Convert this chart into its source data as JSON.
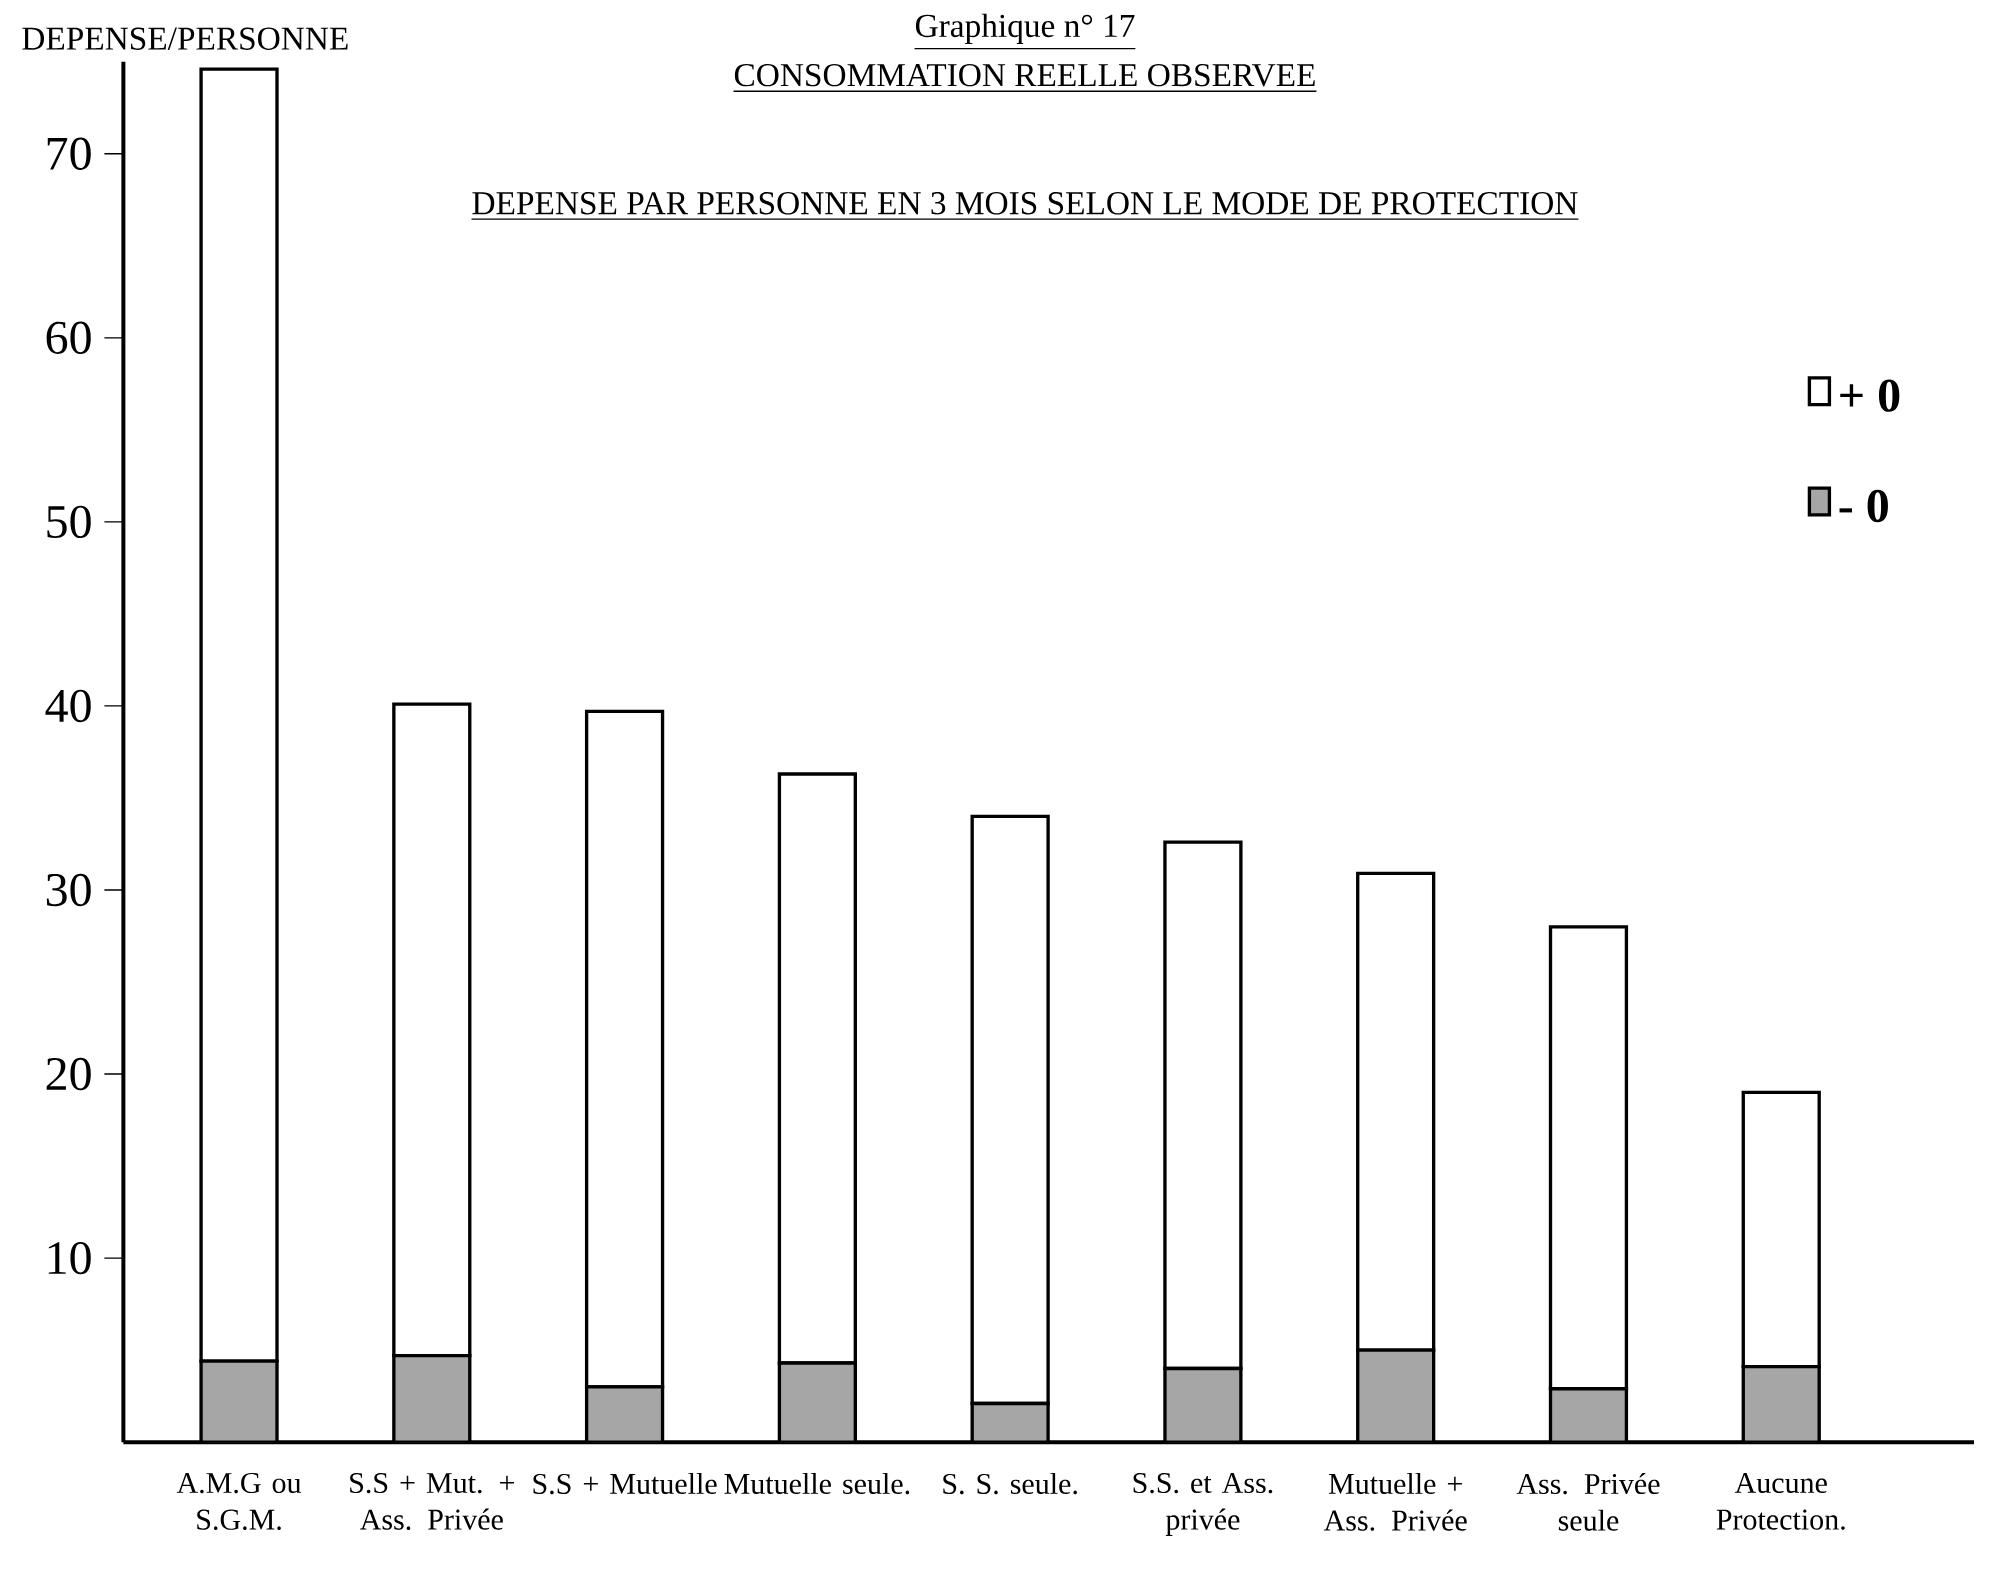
{
  "chart_data": {
    "type": "bar",
    "stacked": true,
    "title": "Graphique n° 17",
    "subtitle": "CONSOMMATION REELLE OBSERVEE",
    "annotations": [
      "DEPENSE PAR PERSONNE EN 3 MOIS SELON LE MODE DE PROTECTION"
    ],
    "ylabel": "DEPENSE/PERSONNE",
    "categories": [
      "A.M.G ou S.G.M.",
      "S.S + Mut. + Ass. Privée",
      "S.S + Mutuelle",
      "Mutuelle seule.",
      "S. S. seule.",
      "S.S. et Ass. privée",
      "Mutuelle + Ass. Privée",
      "Ass. Privée seule",
      "Aucune Protection."
    ],
    "series": [
      {
        "name": "- 0",
        "color": "#a6a6a6",
        "values": [
          4.4,
          4.7,
          3.0,
          4.3,
          2.1,
          4.0,
          5.0,
          2.9,
          4.1
        ]
      },
      {
        "name": "+ 0",
        "color": "#ffffff",
        "values": [
          70.2,
          35.4,
          36.7,
          32.0,
          31.9,
          28.6,
          25.9,
          25.1,
          14.9
        ]
      }
    ],
    "ylim": [
      0,
      75
    ],
    "yticks": [
      10,
      20,
      30,
      40,
      50,
      60,
      70
    ],
    "legend": "right",
    "grid": false
  }
}
